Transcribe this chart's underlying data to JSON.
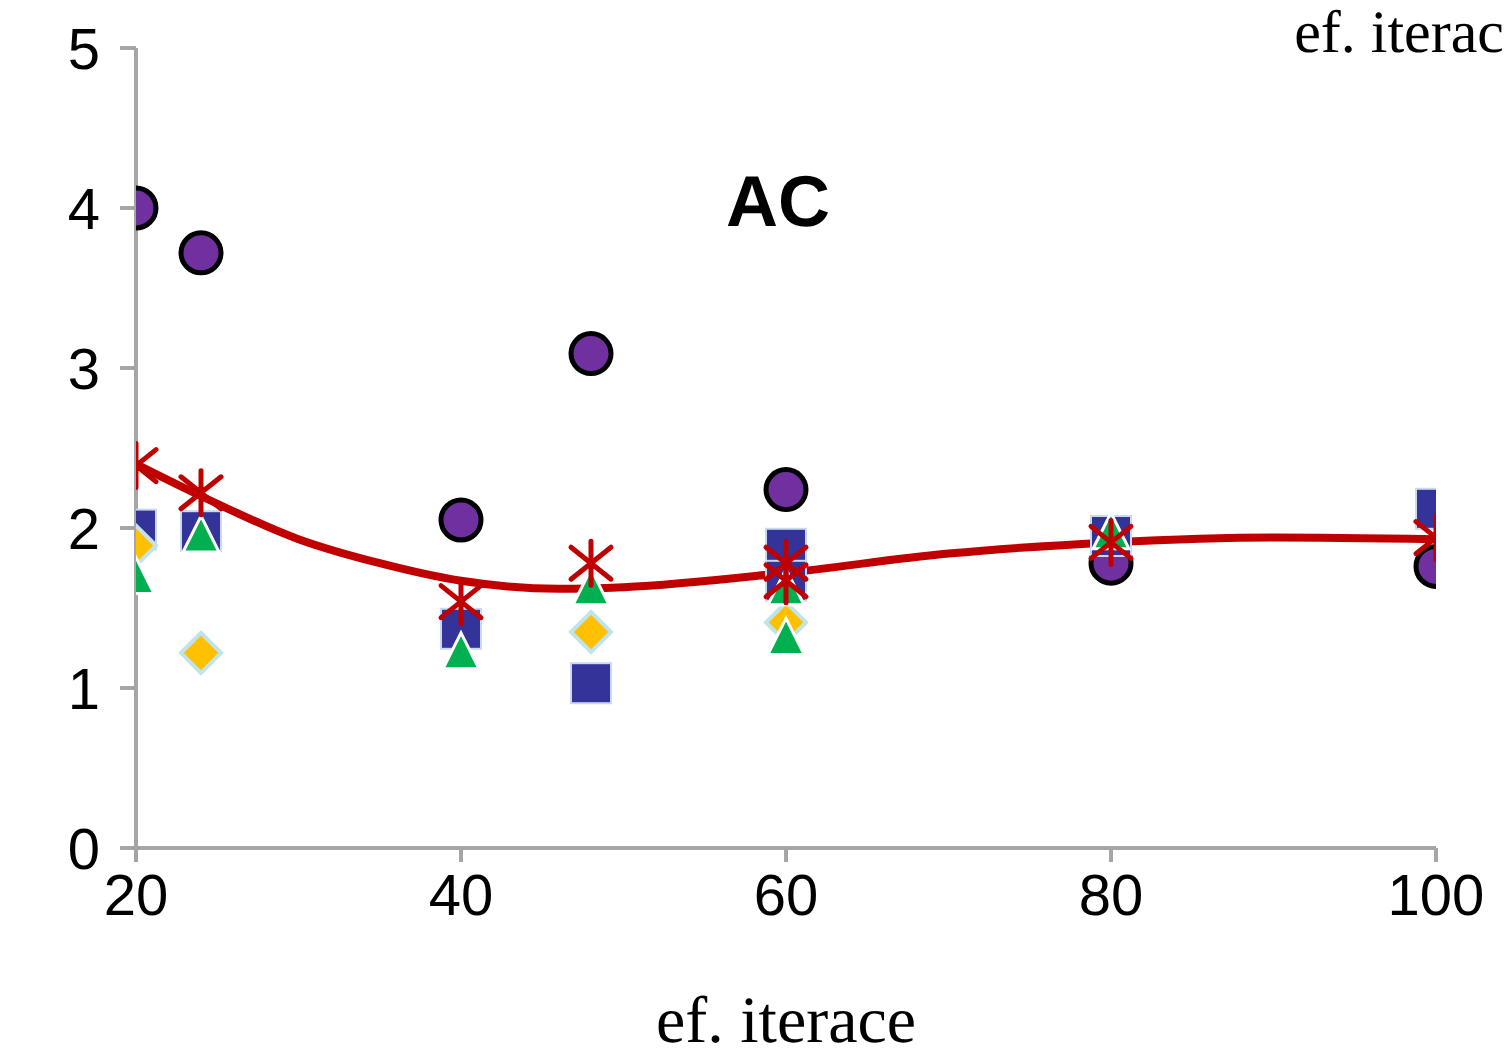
{
  "chart_data": {
    "type": "scatter",
    "title": "AC",
    "xlabel": "ef. iterace",
    "annotations": [
      "ef. iterac"
    ],
    "xlim": [
      20,
      100
    ],
    "xticks": [
      20,
      40,
      60,
      80,
      100
    ],
    "ylim": [
      0,
      5
    ],
    "yticks": [
      0,
      1,
      2,
      3,
      4,
      5
    ],
    "grid": false,
    "legend": false,
    "series": [
      {
        "marker": "circle",
        "color": "#7030a0",
        "x": [
          20,
          24,
          40,
          48,
          60,
          80,
          100
        ],
        "values": [
          4.0,
          3.72,
          2.05,
          3.09,
          2.24,
          1.78,
          1.76
        ]
      },
      {
        "marker": "square",
        "color": "#333399",
        "x": [
          20,
          24,
          40,
          48,
          60,
          60,
          80,
          100
        ],
        "values": [
          1.99,
          1.98,
          1.37,
          1.03,
          1.87,
          1.67,
          1.95,
          2.12
        ]
      },
      {
        "marker": "diamond",
        "color": "#ffc000",
        "x": [
          20,
          24,
          48,
          60
        ],
        "values": [
          1.89,
          1.22,
          1.35,
          1.41
        ]
      },
      {
        "marker": "triangle",
        "color": "#00b050",
        "x": [
          20,
          24,
          40,
          48,
          60,
          60,
          80
        ],
        "values": [
          1.69,
          1.95,
          1.22,
          1.62,
          1.31,
          1.62,
          1.97
        ]
      },
      {
        "marker": "cross",
        "color": "#c00000",
        "x": [
          20,
          24,
          40,
          48,
          60,
          60,
          80,
          100
        ],
        "values": [
          2.39,
          2.22,
          1.54,
          1.78,
          1.78,
          1.67,
          1.91,
          1.94
        ]
      },
      {
        "type": "line",
        "marker": "none",
        "line_style": "solid",
        "color": "#c00000",
        "x": [
          20,
          24,
          30,
          35,
          40,
          46,
          50,
          60,
          70,
          80,
          90,
          100
        ],
        "values": [
          2.4,
          2.2,
          1.93,
          1.78,
          1.67,
          1.62,
          1.63,
          1.72,
          1.84,
          1.91,
          1.94,
          1.93
        ]
      }
    ]
  }
}
